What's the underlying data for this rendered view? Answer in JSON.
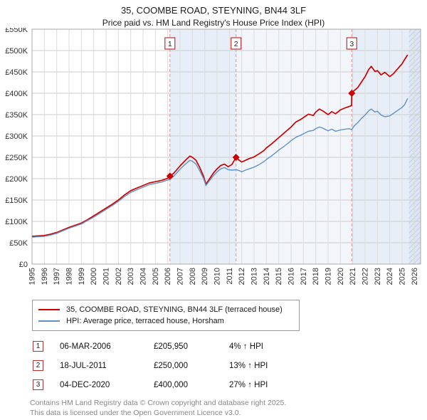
{
  "title": "35, COOMBE ROAD, STEYNING, BN44 3LF",
  "subtitle": "Price paid vs. HM Land Registry's House Price Index (HPI)",
  "chart_data": {
    "type": "line",
    "x_domain": [
      1995,
      2026.5
    ],
    "ylim": [
      0,
      550000
    ],
    "ytick_step": 50000,
    "ytick_labels": [
      "£0",
      "£50K",
      "£100K",
      "£150K",
      "£200K",
      "£250K",
      "£300K",
      "£350K",
      "£400K",
      "£450K",
      "£500K",
      "£550K"
    ],
    "x_years": [
      1995,
      1996,
      1997,
      1998,
      1999,
      2000,
      2001,
      2002,
      2003,
      2004,
      2005,
      2006,
      2007,
      2008,
      2009,
      2010,
      2011,
      2012,
      2013,
      2014,
      2015,
      2016,
      2017,
      2018,
      2019,
      2020,
      2021,
      2022,
      2023,
      2024,
      2025,
      2026
    ],
    "colors": {
      "grid_h": "#cccccc",
      "grid_v": "#dcdcdc",
      "border": "#aaaaaa",
      "marker_line": "#e09090",
      "marker_box_border": "#bb3333",
      "hatch_bg": "#dde6f2",
      "hatch_line": "#c3d0e4"
    },
    "bands": [
      {
        "from": 2006.18,
        "to": 2011.54,
        "color": "#e7eef8",
        "hatch": false
      },
      {
        "from": 2011.54,
        "to": 2020.92,
        "color": "#f2f6fb",
        "hatch": false
      },
      {
        "from": 2020.92,
        "to": 2026.5,
        "color": "#e7eef8",
        "hatch": false
      },
      {
        "from": 2025.55,
        "to": 2026.5,
        "color": "#dde6f2",
        "hatch": true
      }
    ],
    "series": [
      {
        "name": "35, COOMBE ROAD, STEYNING, BN44 3LF (terraced house)",
        "color": "#cc0000",
        "width": 1.7,
        "points": [
          [
            1995,
            65000
          ],
          [
            1995.5,
            66000
          ],
          [
            1996,
            67000
          ],
          [
            1996.5,
            70000
          ],
          [
            1997,
            74000
          ],
          [
            1997.5,
            80000
          ],
          [
            1998,
            86000
          ],
          [
            1998.5,
            91000
          ],
          [
            1999,
            96000
          ],
          [
            1999.5,
            104000
          ],
          [
            2000,
            113000
          ],
          [
            2000.5,
            122000
          ],
          [
            2001,
            131000
          ],
          [
            2001.5,
            140000
          ],
          [
            2002,
            150000
          ],
          [
            2002.5,
            162000
          ],
          [
            2003,
            172000
          ],
          [
            2003.5,
            178000
          ],
          [
            2004,
            184000
          ],
          [
            2004.5,
            190000
          ],
          [
            2005,
            193000
          ],
          [
            2005.5,
            196000
          ],
          [
            2006,
            201000
          ],
          [
            2006.18,
            205950
          ],
          [
            2006.5,
            213000
          ],
          [
            2007,
            230000
          ],
          [
            2007.5,
            245000
          ],
          [
            2007.8,
            253000
          ],
          [
            2008,
            250000
          ],
          [
            2008.3,
            243000
          ],
          [
            2008.6,
            226000
          ],
          [
            2008.9,
            206000
          ],
          [
            2009.1,
            187000
          ],
          [
            2009.4,
            200000
          ],
          [
            2009.7,
            213000
          ],
          [
            2010,
            223000
          ],
          [
            2010.3,
            231000
          ],
          [
            2010.6,
            234000
          ],
          [
            2010.9,
            228000
          ],
          [
            2011.2,
            233000
          ],
          [
            2011.54,
            250000
          ],
          [
            2011.8,
            243000
          ],
          [
            2012,
            239000
          ],
          [
            2012.3,
            243000
          ],
          [
            2012.6,
            247000
          ],
          [
            2013,
            251000
          ],
          [
            2013.4,
            258000
          ],
          [
            2013.8,
            266000
          ],
          [
            2014,
            272000
          ],
          [
            2014.4,
            281000
          ],
          [
            2014.8,
            291000
          ],
          [
            2015,
            296000
          ],
          [
            2015.4,
            306000
          ],
          [
            2015.8,
            316000
          ],
          [
            2016,
            321000
          ],
          [
            2016.4,
            333000
          ],
          [
            2016.8,
            339000
          ],
          [
            2017,
            343000
          ],
          [
            2017.4,
            351000
          ],
          [
            2017.8,
            348000
          ],
          [
            2018,
            356000
          ],
          [
            2018.3,
            363000
          ],
          [
            2018.6,
            358000
          ],
          [
            2019,
            350000
          ],
          [
            2019.3,
            357000
          ],
          [
            2019.6,
            352000
          ],
          [
            2020,
            361000
          ],
          [
            2020.4,
            366000
          ],
          [
            2020.7,
            369000
          ],
          [
            2020.9,
            371000
          ],
          [
            2020.92,
            400000
          ],
          [
            2021.1,
            406000
          ],
          [
            2021.4,
            413000
          ],
          [
            2021.7,
            426000
          ],
          [
            2022,
            439000
          ],
          [
            2022.3,
            456000
          ],
          [
            2022.5,
            463000
          ],
          [
            2022.8,
            451000
          ],
          [
            2023,
            453000
          ],
          [
            2023.3,
            443000
          ],
          [
            2023.6,
            449000
          ],
          [
            2024,
            439000
          ],
          [
            2024.3,
            446000
          ],
          [
            2024.6,
            456000
          ],
          [
            2025,
            469000
          ],
          [
            2025.2,
            479000
          ],
          [
            2025.45,
            490000
          ]
        ]
      },
      {
        "name": "HPI: Average price, terraced house, Horsham",
        "color": "#6191c6",
        "width": 1.4,
        "points": [
          [
            1995,
            63000
          ],
          [
            1995.5,
            64000
          ],
          [
            1996,
            65000
          ],
          [
            1996.5,
            68000
          ],
          [
            1997,
            72000
          ],
          [
            1997.5,
            78000
          ],
          [
            1998,
            84000
          ],
          [
            1998.5,
            89000
          ],
          [
            1999,
            94000
          ],
          [
            1999.5,
            102000
          ],
          [
            2000,
            110000
          ],
          [
            2000.5,
            119000
          ],
          [
            2001,
            128000
          ],
          [
            2001.5,
            137000
          ],
          [
            2002,
            147000
          ],
          [
            2002.5,
            158000
          ],
          [
            2003,
            168000
          ],
          [
            2003.5,
            174000
          ],
          [
            2004,
            180000
          ],
          [
            2004.5,
            186000
          ],
          [
            2005,
            189000
          ],
          [
            2005.5,
            192000
          ],
          [
            2006,
            197000
          ],
          [
            2006.18,
            198000
          ],
          [
            2006.5,
            206000
          ],
          [
            2007,
            222000
          ],
          [
            2007.5,
            236000
          ],
          [
            2007.8,
            243000
          ],
          [
            2008,
            241000
          ],
          [
            2008.3,
            234000
          ],
          [
            2008.6,
            218000
          ],
          [
            2008.9,
            201000
          ],
          [
            2009.1,
            184000
          ],
          [
            2009.4,
            196000
          ],
          [
            2009.7,
            207000
          ],
          [
            2010,
            216000
          ],
          [
            2010.3,
            223000
          ],
          [
            2010.6,
            226000
          ],
          [
            2010.9,
            221000
          ],
          [
            2011.2,
            220000
          ],
          [
            2011.54,
            221000
          ],
          [
            2011.8,
            219000
          ],
          [
            2012,
            216000
          ],
          [
            2012.3,
            220000
          ],
          [
            2012.6,
            223000
          ],
          [
            2013,
            227000
          ],
          [
            2013.4,
            233000
          ],
          [
            2013.8,
            240000
          ],
          [
            2014,
            245000
          ],
          [
            2014.4,
            253000
          ],
          [
            2014.8,
            262000
          ],
          [
            2015,
            267000
          ],
          [
            2015.4,
            275000
          ],
          [
            2015.8,
            284000
          ],
          [
            2016,
            289000
          ],
          [
            2016.4,
            297000
          ],
          [
            2016.8,
            302000
          ],
          [
            2017,
            305000
          ],
          [
            2017.4,
            311000
          ],
          [
            2017.8,
            313000
          ],
          [
            2018,
            317000
          ],
          [
            2018.3,
            321000
          ],
          [
            2018.6,
            318000
          ],
          [
            2019,
            312000
          ],
          [
            2019.3,
            316000
          ],
          [
            2019.6,
            311000
          ],
          [
            2020,
            314000
          ],
          [
            2020.4,
            316000
          ],
          [
            2020.7,
            317000
          ],
          [
            2020.92,
            315000
          ],
          [
            2021.1,
            323000
          ],
          [
            2021.4,
            331000
          ],
          [
            2021.7,
            341000
          ],
          [
            2022,
            349000
          ],
          [
            2022.3,
            359000
          ],
          [
            2022.5,
            363000
          ],
          [
            2022.8,
            356000
          ],
          [
            2023,
            358000
          ],
          [
            2023.3,
            349000
          ],
          [
            2023.6,
            345000
          ],
          [
            2024,
            347000
          ],
          [
            2024.3,
            353000
          ],
          [
            2024.6,
            359000
          ],
          [
            2025,
            367000
          ],
          [
            2025.2,
            373000
          ],
          [
            2025.45,
            388000
          ]
        ]
      }
    ],
    "markers": [
      {
        "label": "1",
        "x": 2006.18,
        "value": 205950
      },
      {
        "label": "2",
        "x": 2011.54,
        "value": 250000
      },
      {
        "label": "3",
        "x": 2020.92,
        "value": 400000
      }
    ]
  },
  "legend": {
    "items": [
      {
        "label": "35, COOMBE ROAD, STEYNING, BN44 3LF (terraced house)"
      },
      {
        "label": "HPI: Average price, terraced house, Horsham"
      }
    ]
  },
  "sales": [
    {
      "num": "1",
      "date": "06-MAR-2006",
      "price": "£205,950",
      "hpi": "4% ↑ HPI"
    },
    {
      "num": "2",
      "date": "18-JUL-2011",
      "price": "£250,000",
      "hpi": "13% ↑ HPI"
    },
    {
      "num": "3",
      "date": "04-DEC-2020",
      "price": "£400,000",
      "hpi": "27% ↑ HPI"
    }
  ],
  "footer": {
    "line1": "Contains HM Land Registry data © Crown copyright and database right 2025.",
    "line2": "This data is licensed under the Open Government Licence v3.0."
  }
}
